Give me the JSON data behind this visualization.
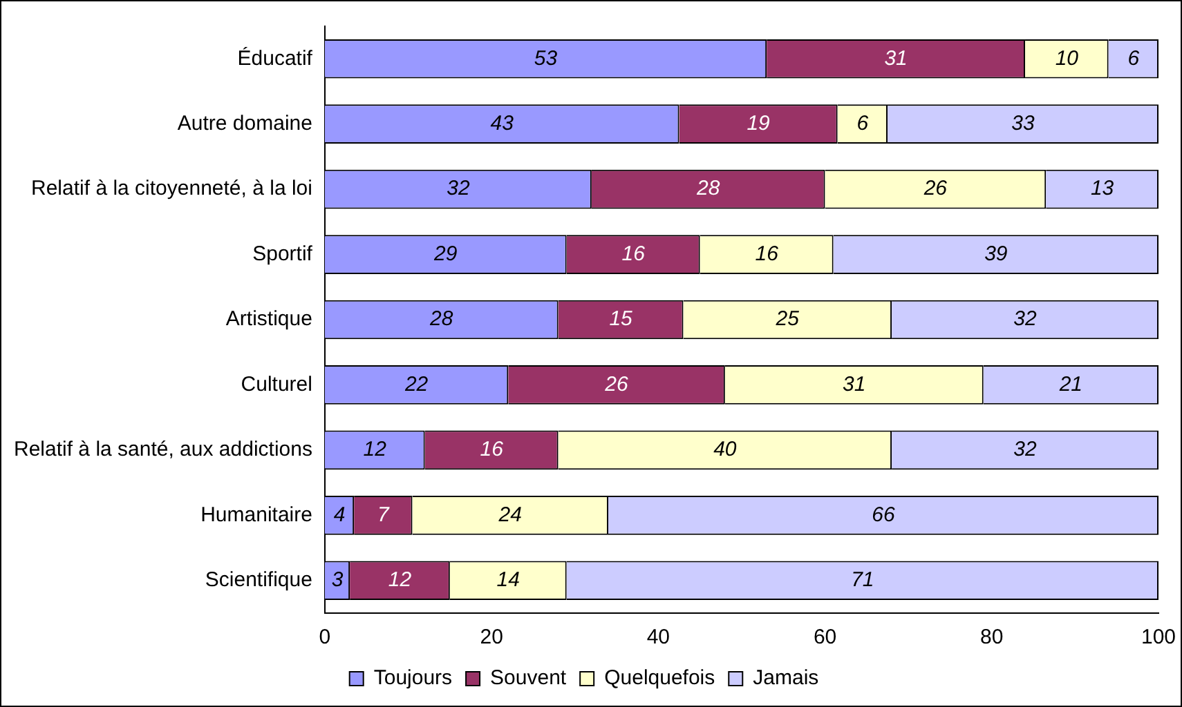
{
  "chart_data": {
    "type": "bar",
    "orientation": "horizontal",
    "stacked": true,
    "categories": [
      "Éducatif",
      "Autre domaine",
      "Relatif à la citoyenneté, à la loi",
      "Sportif",
      "Artistique",
      "Culturel",
      "Relatif à la santé, aux addictions",
      "Humanitaire",
      "Scientifique"
    ],
    "series": [
      {
        "name": "Toujours",
        "color": "#9999ff",
        "values": [
          53,
          42.5,
          32,
          29,
          28,
          22,
          12,
          3.5,
          3
        ],
        "value_labels": [
          "53",
          "43",
          "32",
          "29",
          "28",
          "22",
          "12",
          "4",
          "3"
        ]
      },
      {
        "name": "Souvent",
        "color": "#993366",
        "values": [
          31,
          19,
          28,
          16,
          15,
          26,
          16,
          7,
          12
        ],
        "value_labels": [
          "31",
          "19",
          "28",
          "16",
          "15",
          "26",
          "16",
          "7",
          "12"
        ]
      },
      {
        "name": "Quelquefois",
        "color": "#ffffcc",
        "values": [
          10,
          6,
          26.5,
          16,
          25,
          31,
          40,
          23.5,
          14
        ],
        "value_labels": [
          "10",
          "6",
          "26",
          "16",
          "25",
          "31",
          "40",
          "24",
          "14"
        ]
      },
      {
        "name": "Jamais",
        "color": "#ccccff",
        "values": [
          6,
          32.5,
          13.5,
          39,
          32,
          21,
          32,
          66,
          71
        ],
        "value_labels": [
          "6",
          "33",
          "13",
          "39",
          "32",
          "21",
          "32",
          "66",
          "71"
        ]
      }
    ],
    "xlim": [
      0,
      100
    ],
    "xticks": [
      0,
      20,
      40,
      60,
      80,
      100
    ],
    "grid": false,
    "legend": "bottom"
  }
}
